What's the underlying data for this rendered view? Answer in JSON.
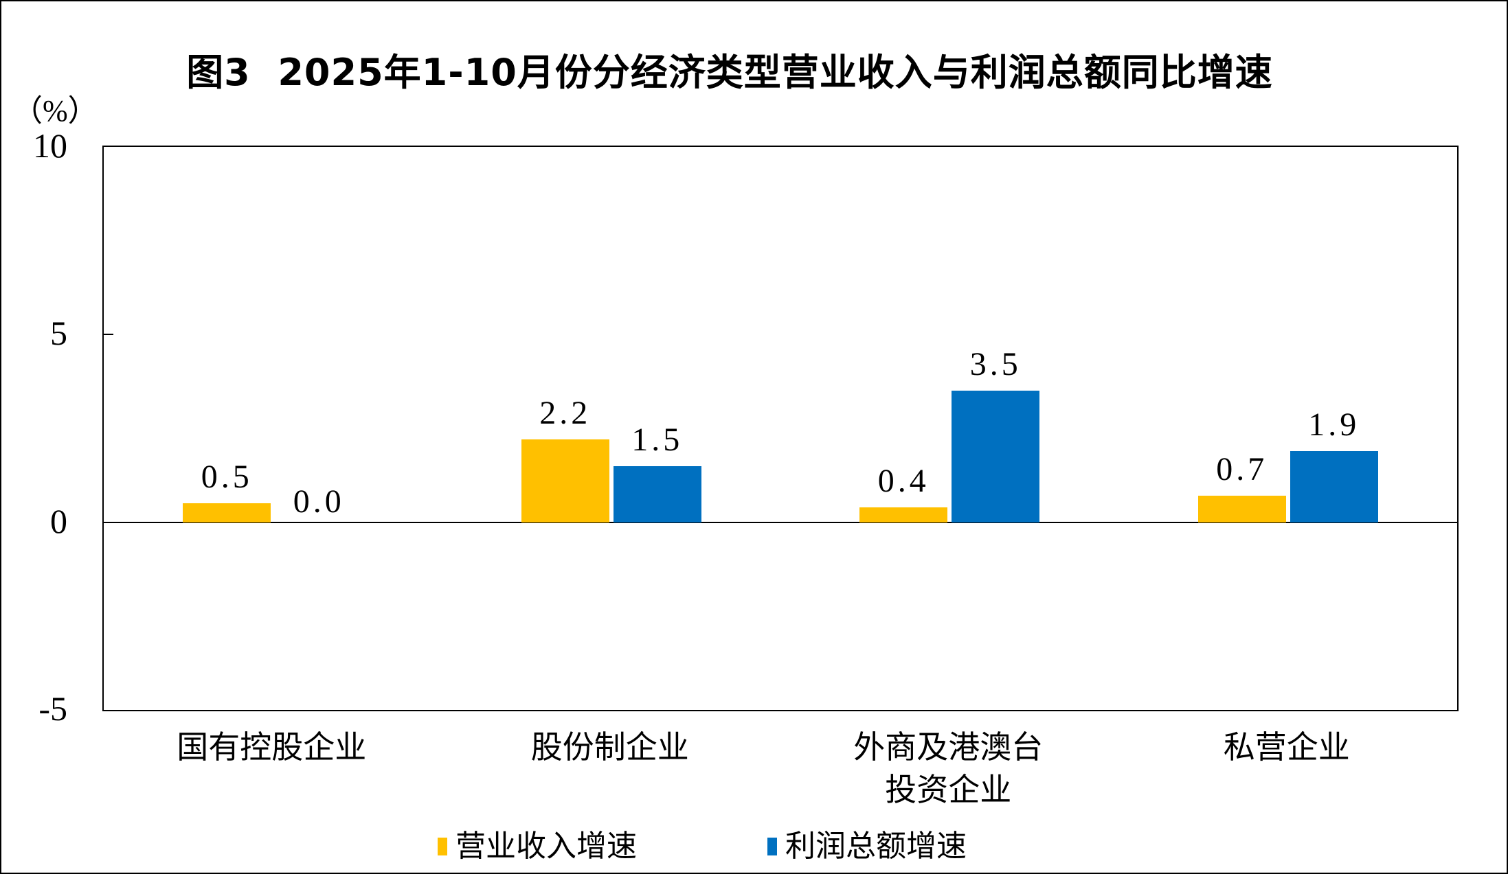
{
  "chart_data": {
    "type": "bar",
    "title": "图3  2025年1-10月份分经济类型营业收入与利润总额同比增速",
    "ylabel": "（%）",
    "xlabel": "",
    "categories": [
      "国有控股企业",
      "股份制企业",
      "外商及港澳台\n投资企业",
      "私营企业"
    ],
    "series": [
      {
        "name": "营业收入增速",
        "color": "#FFC000",
        "values": [
          0.5,
          2.2,
          0.4,
          0.7
        ]
      },
      {
        "name": "利润总额增速",
        "color": "#0070C0",
        "values": [
          0.0,
          1.5,
          3.5,
          1.9
        ]
      }
    ],
    "data_labels": [
      [
        "0.5",
        "2.2",
        "0.4",
        "0.7"
      ],
      [
        "0.0",
        "1.5",
        "3.5",
        "1.9"
      ]
    ],
    "ylim": [
      -5,
      10
    ],
    "yticks": [
      10,
      5,
      0,
      -5
    ],
    "grid": false,
    "zero_baseline": true,
    "legend_position": "bottom",
    "axis_color": "#000000",
    "background_color": "#FFFFFF"
  }
}
